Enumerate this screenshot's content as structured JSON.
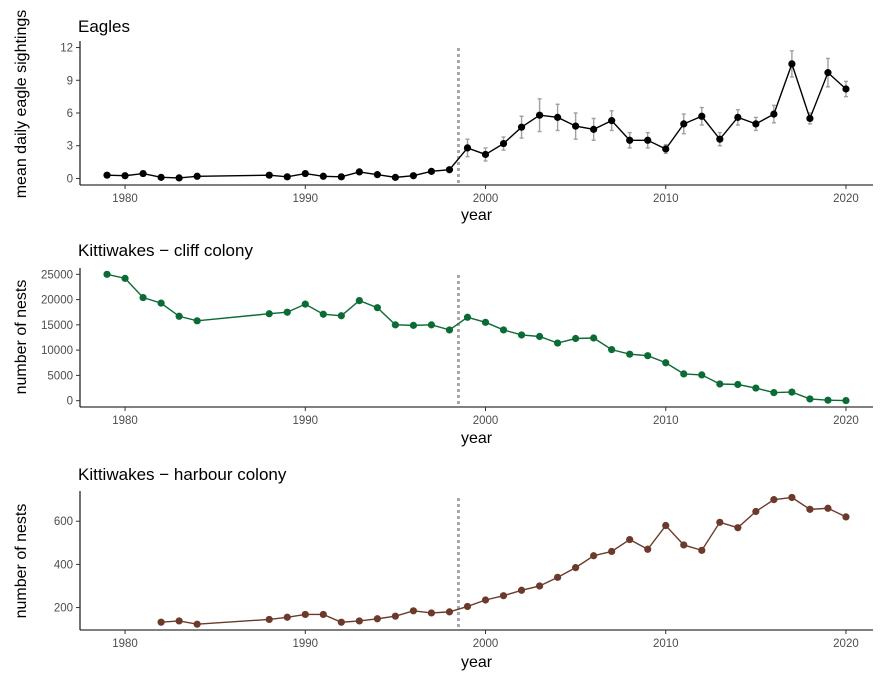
{
  "chart_data": [
    {
      "type": "line",
      "title": "Eagles",
      "xlabel": "year",
      "ylabel": "mean daily eagle sightings",
      "xlim": [
        1977.5,
        2021.5
      ],
      "ylim": [
        -0.6,
        12.6
      ],
      "xticks": [
        1980,
        1990,
        2000,
        2010,
        2020
      ],
      "yticks": [
        0,
        3,
        6,
        9,
        12
      ],
      "reference_line_x": 1998.5,
      "grid": false,
      "color": "#000000",
      "error_bar_color": "#a0a0a0",
      "points": [
        {
          "x": 1979,
          "y": 0.3
        },
        {
          "x": 1980,
          "y": 0.25
        },
        {
          "x": 1981,
          "y": 0.45
        },
        {
          "x": 1982,
          "y": 0.1
        },
        {
          "x": 1983,
          "y": 0.05
        },
        {
          "x": 1984,
          "y": 0.2
        },
        {
          "x": 1988,
          "y": 0.3
        },
        {
          "x": 1989,
          "y": 0.15
        },
        {
          "x": 1990,
          "y": 0.45
        },
        {
          "x": 1991,
          "y": 0.2
        },
        {
          "x": 1992,
          "y": 0.15
        },
        {
          "x": 1993,
          "y": 0.6
        },
        {
          "x": 1994,
          "y": 0.35
        },
        {
          "x": 1995,
          "y": 0.1
        },
        {
          "x": 1996,
          "y": 0.25
        },
        {
          "x": 1997,
          "y": 0.65
        },
        {
          "x": 1998,
          "y": 0.8
        },
        {
          "x": 1999,
          "y": 2.8,
          "lo": 2.0,
          "hi": 3.6
        },
        {
          "x": 2000,
          "y": 2.2,
          "lo": 1.6,
          "hi": 2.8
        },
        {
          "x": 2001,
          "y": 3.2,
          "lo": 2.6,
          "hi": 3.8
        },
        {
          "x": 2002,
          "y": 4.7,
          "lo": 3.7,
          "hi": 5.7
        },
        {
          "x": 2003,
          "y": 5.8,
          "lo": 4.3,
          "hi": 7.3
        },
        {
          "x": 2004,
          "y": 5.6,
          "lo": 4.4,
          "hi": 6.8
        },
        {
          "x": 2005,
          "y": 4.8,
          "lo": 3.6,
          "hi": 6.0
        },
        {
          "x": 2006,
          "y": 4.5,
          "lo": 3.5,
          "hi": 5.5
        },
        {
          "x": 2007,
          "y": 5.3,
          "lo": 4.4,
          "hi": 6.2
        },
        {
          "x": 2008,
          "y": 3.5,
          "lo": 2.8,
          "hi": 4.2
        },
        {
          "x": 2009,
          "y": 3.5,
          "lo": 2.8,
          "hi": 4.2
        },
        {
          "x": 2010,
          "y": 2.7,
          "lo": 2.3,
          "hi": 3.1
        },
        {
          "x": 2011,
          "y": 5.0,
          "lo": 4.1,
          "hi": 5.9
        },
        {
          "x": 2012,
          "y": 5.7,
          "lo": 4.9,
          "hi": 6.5
        },
        {
          "x": 2013,
          "y": 3.6,
          "lo": 3.0,
          "hi": 4.2
        },
        {
          "x": 2014,
          "y": 5.6,
          "lo": 4.9,
          "hi": 6.3
        },
        {
          "x": 2015,
          "y": 5.0,
          "lo": 4.4,
          "hi": 5.6
        },
        {
          "x": 2016,
          "y": 5.9,
          "lo": 5.1,
          "hi": 6.7
        },
        {
          "x": 2017,
          "y": 10.5,
          "lo": 9.3,
          "hi": 11.7
        },
        {
          "x": 2018,
          "y": 5.5,
          "lo": 5.0,
          "hi": 6.0
        },
        {
          "x": 2019,
          "y": 9.7,
          "lo": 8.4,
          "hi": 11.0
        },
        {
          "x": 2020,
          "y": 8.2,
          "lo": 7.5,
          "hi": 8.9
        }
      ]
    },
    {
      "type": "line",
      "title": "Kittiwakes − cliff colony",
      "xlabel": "year",
      "ylabel": "number of nests",
      "xlim": [
        1977.5,
        2021.5
      ],
      "ylim": [
        -1250,
        26250
      ],
      "xticks": [
        1980,
        1990,
        2000,
        2010,
        2020
      ],
      "yticks": [
        0,
        5000,
        10000,
        15000,
        20000,
        25000
      ],
      "reference_line_x": 1998.5,
      "grid": false,
      "color": "#0b6b35",
      "points": [
        {
          "x": 1979,
          "y": 25000
        },
        {
          "x": 1980,
          "y": 24200
        },
        {
          "x": 1981,
          "y": 20400
        },
        {
          "x": 1982,
          "y": 19300
        },
        {
          "x": 1983,
          "y": 16700
        },
        {
          "x": 1984,
          "y": 15800
        },
        {
          "x": 1988,
          "y": 17200
        },
        {
          "x": 1989,
          "y": 17500
        },
        {
          "x": 1990,
          "y": 19100
        },
        {
          "x": 1991,
          "y": 17100
        },
        {
          "x": 1992,
          "y": 16800
        },
        {
          "x": 1993,
          "y": 19800
        },
        {
          "x": 1994,
          "y": 18400
        },
        {
          "x": 1995,
          "y": 15000
        },
        {
          "x": 1996,
          "y": 14900
        },
        {
          "x": 1997,
          "y": 15000
        },
        {
          "x": 1998,
          "y": 14000
        },
        {
          "x": 1999,
          "y": 16500
        },
        {
          "x": 2000,
          "y": 15500
        },
        {
          "x": 2001,
          "y": 14000
        },
        {
          "x": 2002,
          "y": 13000
        },
        {
          "x": 2003,
          "y": 12700
        },
        {
          "x": 2004,
          "y": 11400
        },
        {
          "x": 2005,
          "y": 12300
        },
        {
          "x": 2006,
          "y": 12400
        },
        {
          "x": 2007,
          "y": 10100
        },
        {
          "x": 2008,
          "y": 9200
        },
        {
          "x": 2009,
          "y": 8900
        },
        {
          "x": 2010,
          "y": 7500
        },
        {
          "x": 2011,
          "y": 5300
        },
        {
          "x": 2012,
          "y": 5100
        },
        {
          "x": 2013,
          "y": 3300
        },
        {
          "x": 2014,
          "y": 3200
        },
        {
          "x": 2015,
          "y": 2500
        },
        {
          "x": 2016,
          "y": 1600
        },
        {
          "x": 2017,
          "y": 1700
        },
        {
          "x": 2018,
          "y": 350
        },
        {
          "x": 2019,
          "y": 100
        },
        {
          "x": 2020,
          "y": 20
        }
      ]
    },
    {
      "type": "line",
      "title": "Kittiwakes − harbour colony",
      "xlabel": "year",
      "ylabel": "number of nests",
      "xlim": [
        1977.5,
        2021.5
      ],
      "ylim": [
        96,
        740
      ],
      "xticks": [
        1980,
        1990,
        2000,
        2010,
        2020
      ],
      "yticks": [
        200,
        400,
        600
      ],
      "reference_line_x": 1998.5,
      "grid": false,
      "color": "#6b3a2a",
      "points": [
        {
          "x": 1982,
          "y": 132
        },
        {
          "x": 1983,
          "y": 138
        },
        {
          "x": 1984,
          "y": 123
        },
        {
          "x": 1988,
          "y": 145
        },
        {
          "x": 1989,
          "y": 155
        },
        {
          "x": 1990,
          "y": 168
        },
        {
          "x": 1991,
          "y": 168
        },
        {
          "x": 1992,
          "y": 132
        },
        {
          "x": 1993,
          "y": 138
        },
        {
          "x": 1994,
          "y": 148
        },
        {
          "x": 1995,
          "y": 160
        },
        {
          "x": 1996,
          "y": 185
        },
        {
          "x": 1997,
          "y": 175
        },
        {
          "x": 1998,
          "y": 180
        },
        {
          "x": 1999,
          "y": 205
        },
        {
          "x": 2000,
          "y": 235
        },
        {
          "x": 2001,
          "y": 255
        },
        {
          "x": 2002,
          "y": 280
        },
        {
          "x": 2003,
          "y": 300
        },
        {
          "x": 2004,
          "y": 340
        },
        {
          "x": 2005,
          "y": 385
        },
        {
          "x": 2006,
          "y": 440
        },
        {
          "x": 2007,
          "y": 460
        },
        {
          "x": 2008,
          "y": 515
        },
        {
          "x": 2009,
          "y": 470
        },
        {
          "x": 2010,
          "y": 580
        },
        {
          "x": 2011,
          "y": 490
        },
        {
          "x": 2012,
          "y": 465
        },
        {
          "x": 2013,
          "y": 595
        },
        {
          "x": 2014,
          "y": 570
        },
        {
          "x": 2015,
          "y": 645
        },
        {
          "x": 2016,
          "y": 700
        },
        {
          "x": 2017,
          "y": 710
        },
        {
          "x": 2018,
          "y": 655
        },
        {
          "x": 2019,
          "y": 660
        },
        {
          "x": 2020,
          "y": 620
        }
      ]
    }
  ]
}
